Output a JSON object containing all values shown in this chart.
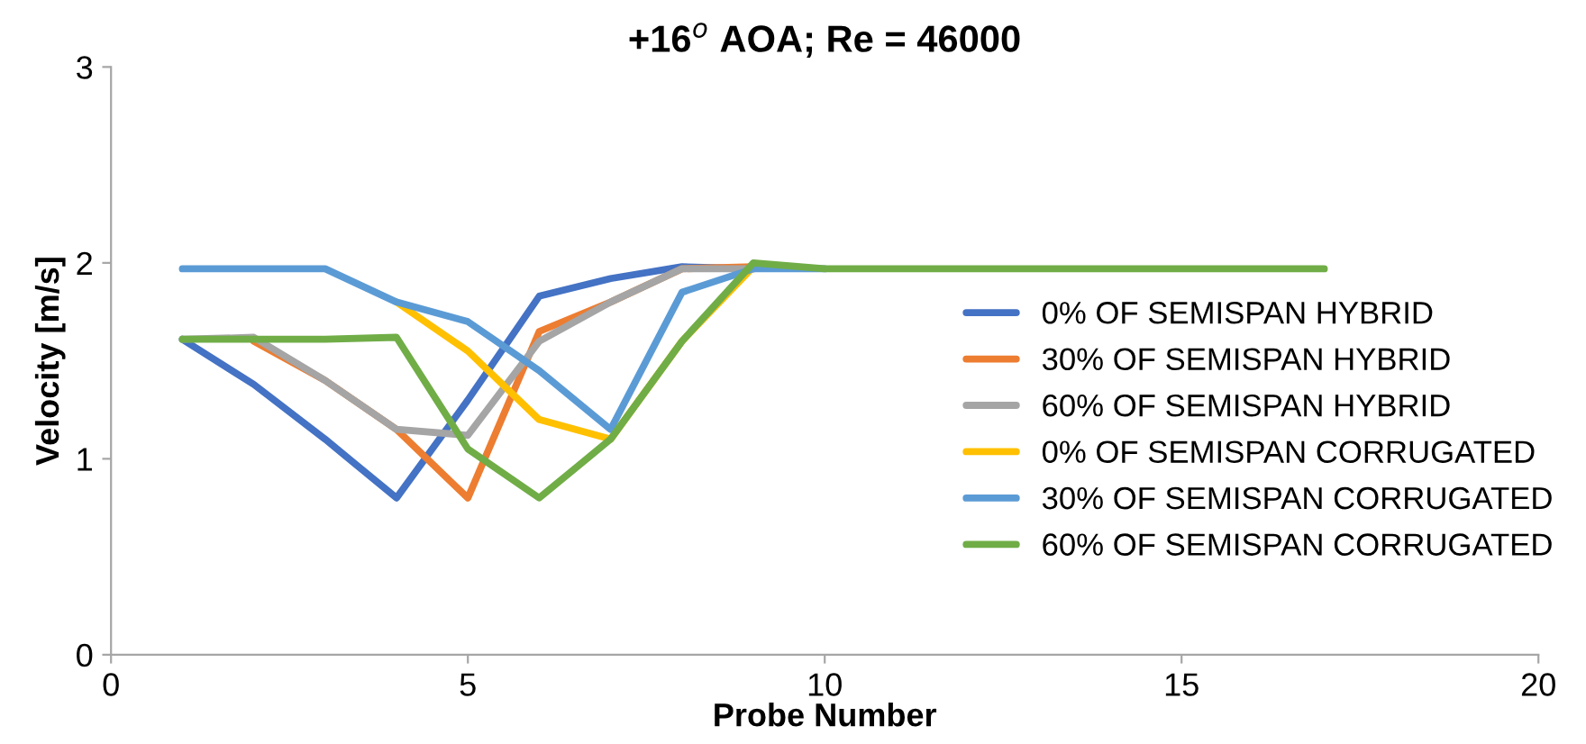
{
  "chart_data": {
    "type": "line",
    "title": "+16$^{o}$ AOA; Re = 46000",
    "xlabel": "Probe Number",
    "ylabel": "Velocity [m/s]",
    "x": [
      1,
      2,
      3,
      4,
      5,
      6,
      7,
      8,
      9,
      10,
      11,
      12,
      13,
      14,
      15,
      16,
      17
    ],
    "series": [
      {
        "name": "0% OF SEMISPAN HYBRID",
        "color": "#4472c4",
        "values": [
          1.61,
          1.38,
          1.1,
          0.8,
          1.3,
          1.83,
          1.92,
          1.98,
          1.97,
          null,
          null,
          null,
          null,
          null,
          null,
          null,
          null
        ]
      },
      {
        "name": "30% OF SEMISPAN HYBRID",
        "color": "#ed7d31",
        "values": [
          null,
          1.6,
          1.4,
          1.15,
          0.8,
          1.65,
          1.8,
          1.97,
          1.98,
          null,
          null,
          null,
          null,
          null,
          null,
          null,
          null
        ]
      },
      {
        "name": "60% OF SEMISPAN HYBRID",
        "color": "#a5a5a5",
        "values": [
          1.61,
          1.62,
          1.4,
          1.15,
          1.12,
          1.6,
          1.8,
          1.97,
          1.97,
          null,
          null,
          null,
          null,
          null,
          null,
          null,
          null
        ]
      },
      {
        "name": "0% OF SEMISPAN CORRUGATED",
        "color": "#ffc000",
        "values": [
          null,
          null,
          null,
          1.8,
          1.55,
          1.2,
          1.1,
          1.6,
          1.98,
          null,
          null,
          null,
          null,
          null,
          null,
          null,
          null
        ]
      },
      {
        "name": "30% OF SEMISPAN CORRUGATED",
        "color": "#5b9bd5",
        "values": [
          1.97,
          1.97,
          1.97,
          1.8,
          1.7,
          1.45,
          1.15,
          1.85,
          1.97,
          1.97,
          null,
          null,
          null,
          null,
          null,
          null,
          null
        ]
      },
      {
        "name": "60% OF SEMISPAN CORRUGATED",
        "color": "#70ad47",
        "values": [
          1.61,
          1.61,
          1.61,
          1.62,
          1.05,
          0.8,
          1.1,
          1.6,
          2.0,
          1.97,
          1.97,
          1.97,
          1.97,
          1.97,
          1.97,
          1.97,
          1.97
        ]
      }
    ],
    "xlim": [
      0,
      20
    ],
    "xticks": [
      0,
      5,
      10,
      15,
      20
    ],
    "ylim": [
      0,
      3
    ],
    "yticks": [
      0,
      1,
      2,
      3
    ],
    "grid": false,
    "legend": "right",
    "marker": "none",
    "line_style": "solid"
  }
}
